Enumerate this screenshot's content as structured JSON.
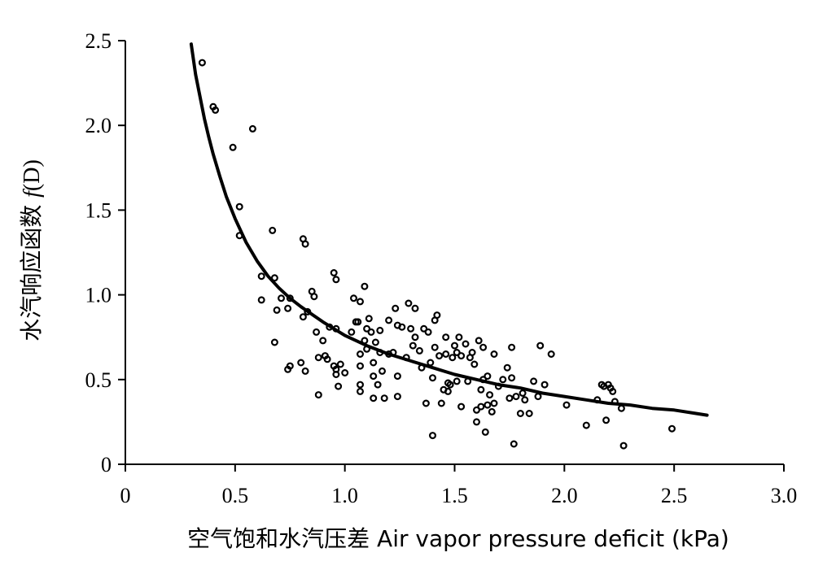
{
  "chart_data": {
    "type": "scatter",
    "xlabel": "空气饱和水汽压差 Air vapor pressure deficit (kPa)",
    "ylabel_main": "水汽响应函数 ",
    "ylabel_f": "f",
    "ylabel_var": "(D)",
    "xlim": [
      0,
      3.0
    ],
    "ylim": [
      0,
      2.5
    ],
    "x_ticks": [
      0,
      0.5,
      1.0,
      1.5,
      2.0,
      2.5,
      3.0
    ],
    "x_tick_labels": [
      "0",
      "0.5",
      "1.0",
      "1.5",
      "2.0",
      "2.5",
      "3.0"
    ],
    "y_ticks": [
      0,
      0.5,
      1.0,
      1.5,
      2.0,
      2.5
    ],
    "y_tick_labels": [
      "0",
      "0.5",
      "1.0",
      "1.5",
      "2.0",
      "2.5"
    ],
    "grid": false,
    "legend": "none",
    "colors": {
      "points": "#000000",
      "curve": "#000000"
    },
    "fit_curve": {
      "x": [
        0.3,
        0.32,
        0.34,
        0.36,
        0.38,
        0.4,
        0.43,
        0.46,
        0.5,
        0.55,
        0.6,
        0.65,
        0.7,
        0.75,
        0.8,
        0.9,
        1.0,
        1.1,
        1.2,
        1.3,
        1.4,
        1.5,
        1.6,
        1.7,
        1.8,
        1.9,
        2.0,
        2.1,
        2.2,
        2.3,
        2.4,
        2.5,
        2.6,
        2.65
      ],
      "y": [
        2.48,
        2.3,
        2.17,
        2.04,
        1.93,
        1.83,
        1.7,
        1.58,
        1.45,
        1.31,
        1.2,
        1.11,
        1.04,
        0.98,
        0.93,
        0.84,
        0.76,
        0.7,
        0.65,
        0.61,
        0.57,
        0.53,
        0.5,
        0.47,
        0.45,
        0.42,
        0.4,
        0.38,
        0.36,
        0.35,
        0.33,
        0.32,
        0.3,
        0.29
      ]
    },
    "points": [
      [
        0.35,
        2.37
      ],
      [
        0.4,
        2.11
      ],
      [
        0.41,
        2.09
      ],
      [
        0.49,
        1.87
      ],
      [
        0.58,
        1.98
      ],
      [
        0.52,
        1.52
      ],
      [
        0.52,
        1.35
      ],
      [
        0.67,
        1.38
      ],
      [
        0.81,
        1.33
      ],
      [
        0.82,
        1.3
      ],
      [
        0.62,
        1.11
      ],
      [
        0.68,
        1.1
      ],
      [
        0.62,
        0.97
      ],
      [
        0.69,
        0.91
      ],
      [
        0.71,
        0.98
      ],
      [
        0.74,
        0.92
      ],
      [
        0.75,
        0.98
      ],
      [
        0.68,
        0.72
      ],
      [
        0.74,
        0.56
      ],
      [
        0.75,
        0.58
      ],
      [
        0.8,
        0.6
      ],
      [
        0.82,
        0.55
      ],
      [
        0.81,
        0.87
      ],
      [
        0.83,
        0.9
      ],
      [
        0.85,
        1.02
      ],
      [
        0.86,
        0.99
      ],
      [
        0.87,
        0.78
      ],
      [
        0.88,
        0.63
      ],
      [
        0.88,
        0.41
      ],
      [
        0.9,
        0.73
      ],
      [
        0.91,
        0.64
      ],
      [
        0.92,
        0.62
      ],
      [
        0.93,
        0.81
      ],
      [
        0.95,
        1.13
      ],
      [
        0.96,
        1.09
      ],
      [
        0.96,
        0.8
      ],
      [
        0.95,
        0.58
      ],
      [
        0.96,
        0.56
      ],
      [
        0.96,
        0.53
      ],
      [
        0.97,
        0.46
      ],
      [
        0.98,
        0.59
      ],
      [
        1.0,
        0.54
      ],
      [
        1.03,
        0.78
      ],
      [
        1.04,
        0.98
      ],
      [
        1.05,
        0.84
      ],
      [
        1.06,
        0.84
      ],
      [
        1.07,
        0.96
      ],
      [
        1.07,
        0.65
      ],
      [
        1.07,
        0.58
      ],
      [
        1.07,
        0.47
      ],
      [
        1.07,
        0.43
      ],
      [
        1.09,
        0.73
      ],
      [
        1.09,
        1.05
      ],
      [
        1.1,
        0.8
      ],
      [
        1.1,
        0.68
      ],
      [
        1.11,
        0.86
      ],
      [
        1.12,
        0.78
      ],
      [
        1.13,
        0.6
      ],
      [
        1.13,
        0.52
      ],
      [
        1.13,
        0.39
      ],
      [
        1.14,
        0.72
      ],
      [
        1.15,
        0.47
      ],
      [
        1.16,
        0.79
      ],
      [
        1.16,
        0.66
      ],
      [
        1.17,
        0.55
      ],
      [
        1.18,
        0.39
      ],
      [
        1.2,
        0.85
      ],
      [
        1.2,
        0.65
      ],
      [
        1.22,
        0.66
      ],
      [
        1.23,
        0.92
      ],
      [
        1.24,
        0.82
      ],
      [
        1.24,
        0.52
      ],
      [
        1.24,
        0.4
      ],
      [
        1.26,
        0.81
      ],
      [
        1.28,
        0.63
      ],
      [
        1.29,
        0.95
      ],
      [
        1.3,
        0.8
      ],
      [
        1.31,
        0.7
      ],
      [
        1.32,
        0.92
      ],
      [
        1.32,
        0.75
      ],
      [
        1.34,
        0.67
      ],
      [
        1.35,
        0.57
      ],
      [
        1.36,
        0.8
      ],
      [
        1.37,
        0.36
      ],
      [
        1.38,
        0.78
      ],
      [
        1.39,
        0.6
      ],
      [
        1.4,
        0.51
      ],
      [
        1.4,
        0.17
      ],
      [
        1.41,
        0.85
      ],
      [
        1.41,
        0.69
      ],
      [
        1.42,
        0.88
      ],
      [
        1.43,
        0.64
      ],
      [
        1.44,
        0.36
      ],
      [
        1.45,
        0.44
      ],
      [
        1.46,
        0.75
      ],
      [
        1.46,
        0.65
      ],
      [
        1.47,
        0.48
      ],
      [
        1.47,
        0.43
      ],
      [
        1.48,
        0.47
      ],
      [
        1.49,
        0.63
      ],
      [
        1.5,
        0.7
      ],
      [
        1.51,
        0.66
      ],
      [
        1.51,
        0.49
      ],
      [
        1.52,
        0.75
      ],
      [
        1.53,
        0.64
      ],
      [
        1.53,
        0.34
      ],
      [
        1.55,
        0.71
      ],
      [
        1.56,
        0.49
      ],
      [
        1.57,
        0.63
      ],
      [
        1.58,
        0.66
      ],
      [
        1.59,
        0.59
      ],
      [
        1.6,
        0.32
      ],
      [
        1.6,
        0.25
      ],
      [
        1.61,
        0.73
      ],
      [
        1.62,
        0.34
      ],
      [
        1.62,
        0.44
      ],
      [
        1.63,
        0.69
      ],
      [
        1.63,
        0.5
      ],
      [
        1.64,
        0.19
      ],
      [
        1.65,
        0.52
      ],
      [
        1.65,
        0.35
      ],
      [
        1.66,
        0.41
      ],
      [
        1.67,
        0.31
      ],
      [
        1.68,
        0.36
      ],
      [
        1.68,
        0.65
      ],
      [
        1.7,
        0.46
      ],
      [
        1.72,
        0.5
      ],
      [
        1.74,
        0.57
      ],
      [
        1.75,
        0.39
      ],
      [
        1.76,
        0.69
      ],
      [
        1.76,
        0.51
      ],
      [
        1.77,
        0.12
      ],
      [
        1.78,
        0.4
      ],
      [
        1.8,
        0.3
      ],
      [
        1.81,
        0.42
      ],
      [
        1.82,
        0.38
      ],
      [
        1.84,
        0.3
      ],
      [
        1.86,
        0.49
      ],
      [
        1.88,
        0.4
      ],
      [
        1.89,
        0.7
      ],
      [
        1.91,
        0.47
      ],
      [
        1.94,
        0.65
      ],
      [
        2.01,
        0.35
      ],
      [
        2.1,
        0.23
      ],
      [
        2.15,
        0.38
      ],
      [
        2.17,
        0.47
      ],
      [
        2.18,
        0.46
      ],
      [
        2.19,
        0.26
      ],
      [
        2.2,
        0.47
      ],
      [
        2.21,
        0.45
      ],
      [
        2.22,
        0.43
      ],
      [
        2.23,
        0.37
      ],
      [
        2.26,
        0.33
      ],
      [
        2.27,
        0.11
      ],
      [
        2.49,
        0.21
      ]
    ]
  }
}
